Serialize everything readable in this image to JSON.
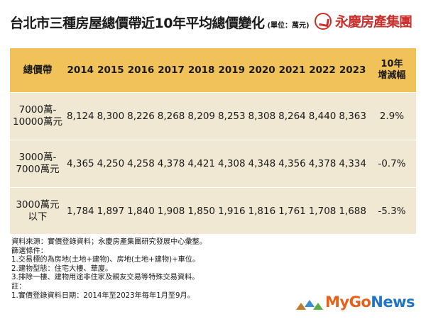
{
  "title": "台北市三種房屋總價帶近10年平均總價變化",
  "unit": "(單位：萬元)",
  "brand": "永慶房產集團",
  "colors": {
    "header_bg": "#f2c25a",
    "body_bg": "#f0e8d3",
    "brand_red": "#c9302c"
  },
  "chart_data": {
    "type": "table",
    "title": "台北市三種房屋總價帶近10年平均總價變化",
    "unit": "(單位：萬元)",
    "row_header": "總價帶",
    "years": [
      "2014",
      "2015",
      "2016",
      "2017",
      "2018",
      "2019",
      "2020",
      "2021",
      "2022",
      "2023"
    ],
    "change_header": "10年\n增減幅",
    "rows": [
      {
        "label": "7000萬-\n10000萬元",
        "values": [
          "8,124",
          "8,300",
          "8,226",
          "8,268",
          "8,209",
          "8,253",
          "8,308",
          "8,264",
          "8,440",
          "8,363"
        ],
        "change": "2.9%"
      },
      {
        "label": "3000萬-\n7000萬元",
        "values": [
          "4,365",
          "4,250",
          "4,258",
          "4,378",
          "4,421",
          "4,308",
          "4,348",
          "4,356",
          "4,378",
          "4,334"
        ],
        "change": "-0.7%"
      },
      {
        "label": "3000萬元\n以下",
        "values": [
          "1,784",
          "1,897",
          "1,840",
          "1,908",
          "1,850",
          "1,916",
          "1,816",
          "1,761",
          "1,708",
          "1,688"
        ],
        "change": "-5.3%"
      }
    ]
  },
  "notes": [
    "資料來源：實價登錄資料；永慶房產集團研究發展中心彙整。",
    "篩選條件：",
    "1.交易標的為房地(土地+建物)、房地(土地+建物)+車位。",
    "2.建物型態：住宅大樓、華廈。",
    "3.排除一樓、建物用途非住家及親友交易等特殊交易資料。",
    "註：",
    "1.實價登錄資料日期：2014年至2023年每年1月至9月。"
  ],
  "footer": {
    "my": "My",
    "go": "Go",
    "news": "News"
  },
  "icons": [
    "brand-logo-icon",
    "house-icon"
  ]
}
